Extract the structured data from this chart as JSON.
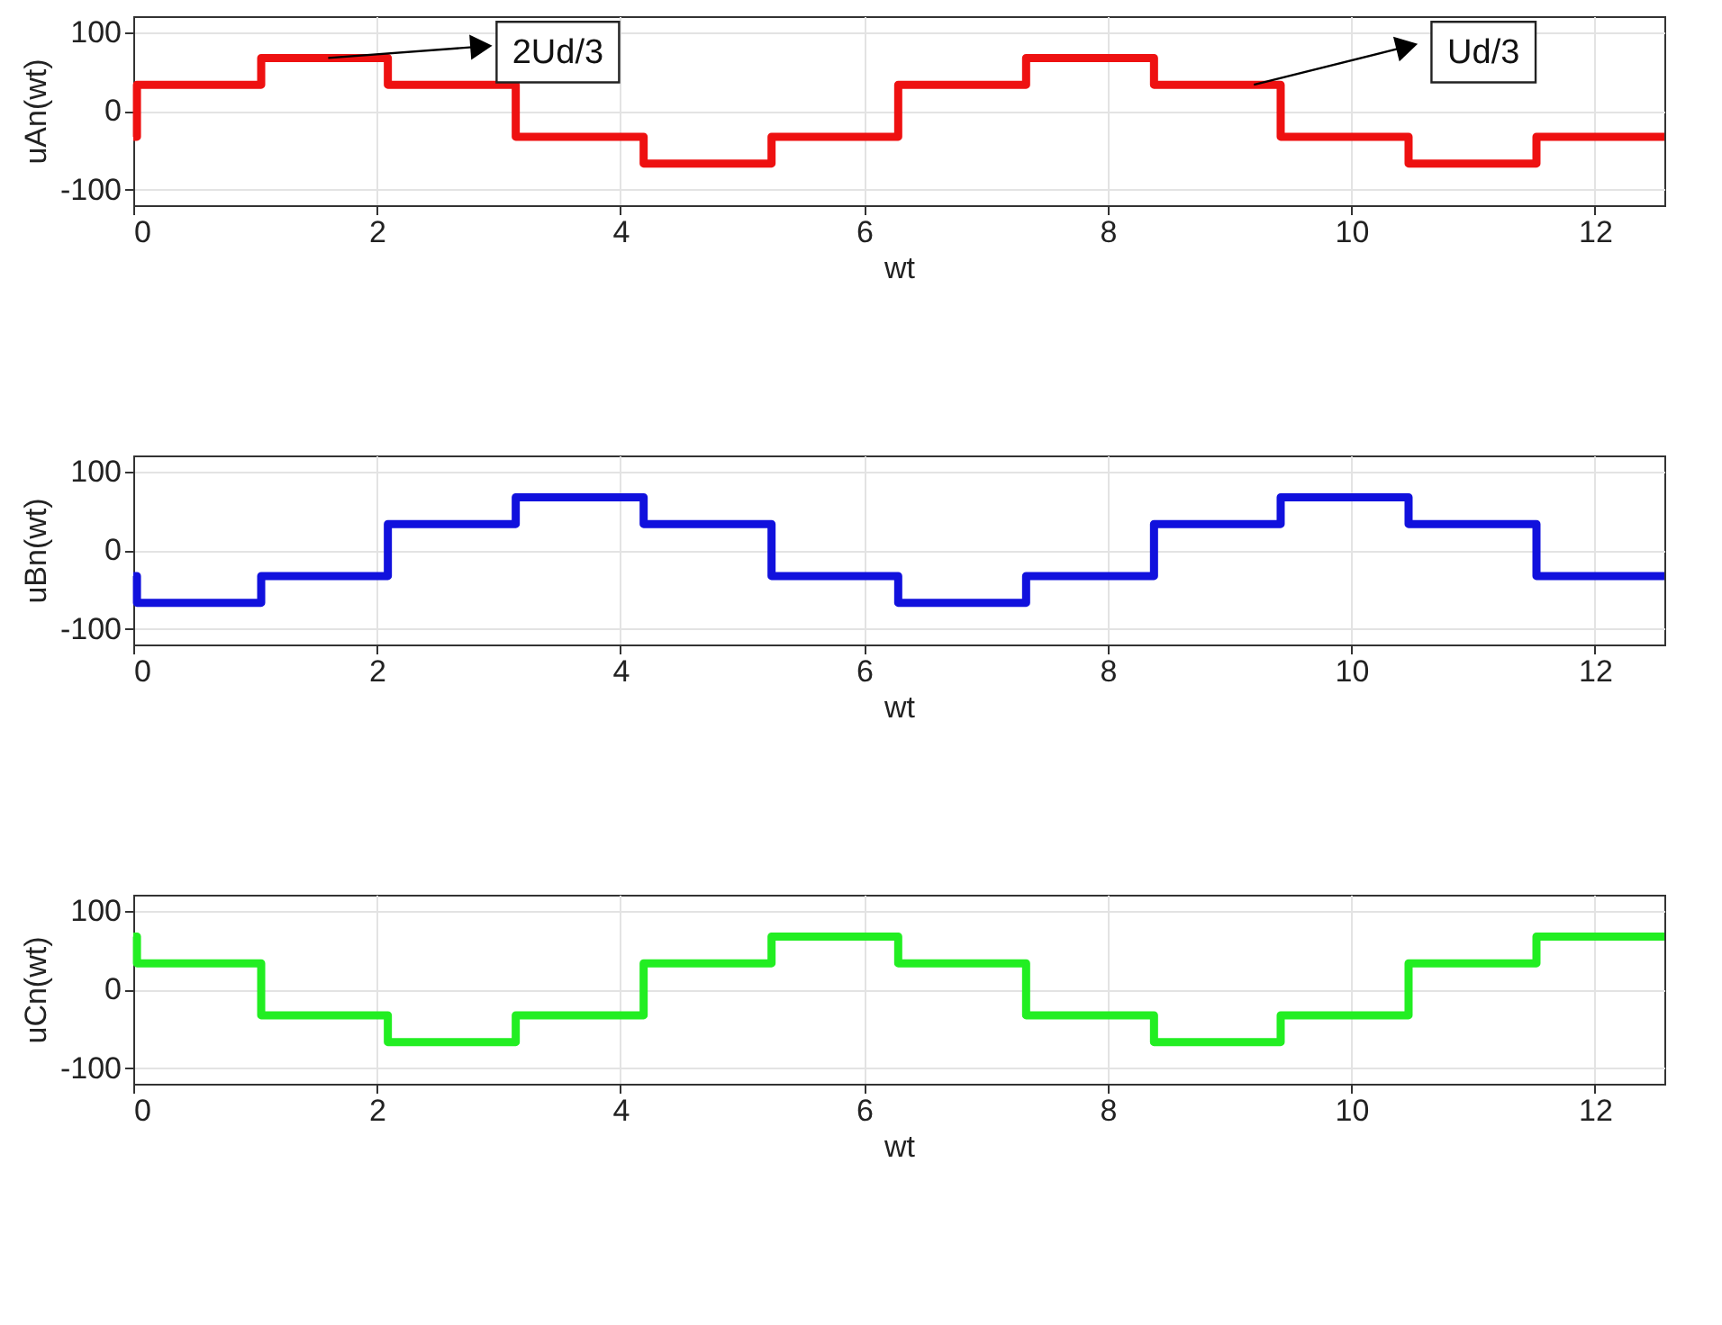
{
  "chart_data": [
    {
      "type": "step",
      "xlabel": "wt",
      "ylabel": "uAn(wt)",
      "xlim": [
        0,
        12.57
      ],
      "ylim": [
        -120,
        120
      ],
      "xticks": [
        0,
        2,
        4,
        6,
        8,
        10,
        12
      ],
      "yticks": [
        -100,
        0,
        100
      ],
      "grid": true,
      "line_style": "solid",
      "x": [
        0,
        0.03,
        1.05,
        2.09,
        3.14,
        4.19,
        5.24,
        6.28,
        7.33,
        8.38,
        9.42,
        10.47,
        11.52,
        12.57
      ],
      "series": [
        {
          "color": "#ee1111",
          "values": [
            -33,
            33,
            67,
            33,
            -33,
            -67,
            -33,
            33,
            67,
            33,
            -33,
            -67,
            -33,
            -33
          ]
        }
      ],
      "annotations": [
        {
          "text": "2Ud/3",
          "x": 1.6,
          "y": 67
        },
        {
          "text": "Ud/3",
          "x": 9.2,
          "y": 33
        }
      ]
    },
    {
      "type": "step",
      "xlabel": "wt",
      "ylabel": "uBn(wt)",
      "xlim": [
        0,
        12.57
      ],
      "ylim": [
        -120,
        120
      ],
      "xticks": [
        0,
        2,
        4,
        6,
        8,
        10,
        12
      ],
      "yticks": [
        -100,
        0,
        100
      ],
      "grid": true,
      "line_style": "solid",
      "x": [
        0,
        0.03,
        1.05,
        2.09,
        3.14,
        4.19,
        5.24,
        6.28,
        7.33,
        8.38,
        9.42,
        10.47,
        11.52,
        12.57
      ],
      "series": [
        {
          "color": "#1111dd",
          "values": [
            -33,
            -67,
            -33,
            33,
            67,
            33,
            -33,
            -67,
            -33,
            33,
            67,
            33,
            -33,
            -33
          ]
        }
      ]
    },
    {
      "type": "step",
      "xlabel": "wt",
      "ylabel": "uCn(wt)",
      "xlim": [
        0,
        12.57
      ],
      "ylim": [
        -120,
        120
      ],
      "xticks": [
        0,
        2,
        4,
        6,
        8,
        10,
        12
      ],
      "yticks": [
        -100,
        0,
        100
      ],
      "grid": true,
      "line_style": "solid",
      "x": [
        0,
        0.03,
        1.05,
        2.09,
        3.14,
        4.19,
        5.24,
        6.28,
        7.33,
        8.38,
        9.42,
        10.47,
        11.52,
        12.57
      ],
      "series": [
        {
          "color": "#22ee22",
          "values": [
            67,
            33,
            -33,
            -67,
            -33,
            33,
            67,
            33,
            -33,
            -67,
            -33,
            33,
            67,
            67
          ]
        }
      ]
    }
  ]
}
